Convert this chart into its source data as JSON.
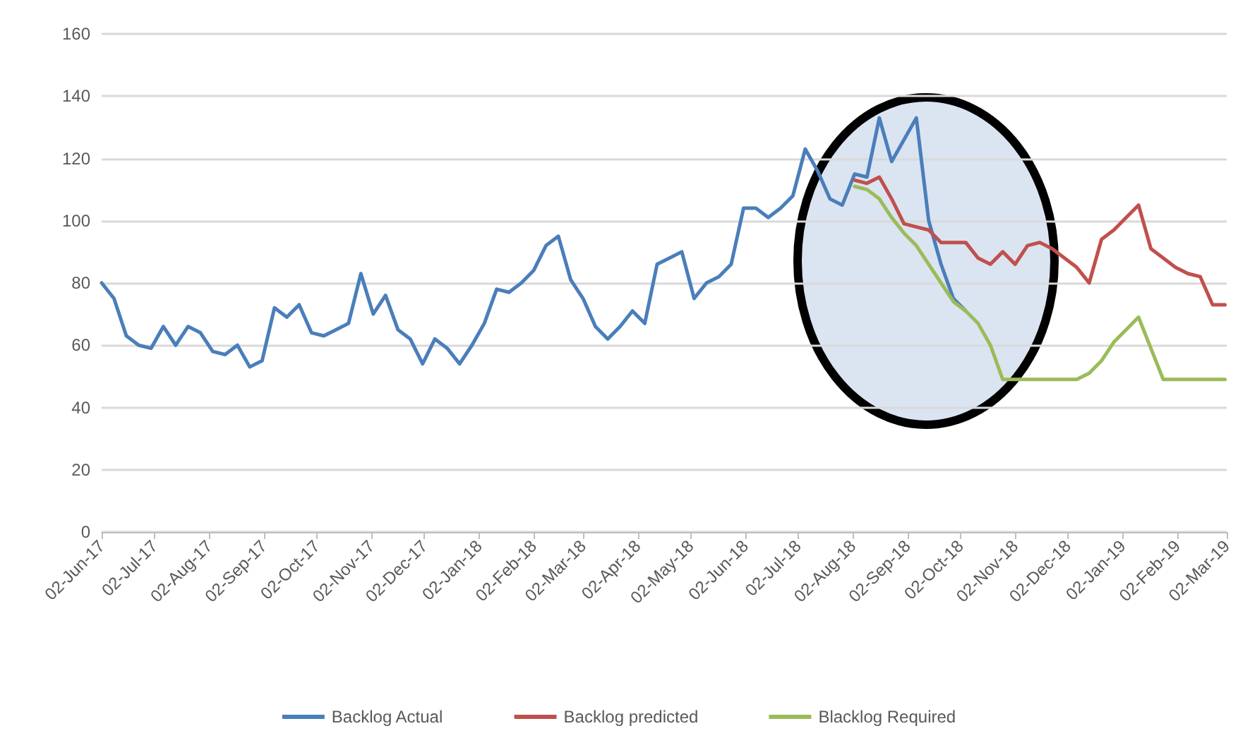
{
  "chart_data": {
    "type": "line",
    "x": [
      "2017-06-02",
      "2017-06-09",
      "2017-06-16",
      "2017-06-23",
      "2017-06-30",
      "2017-07-07",
      "2017-07-14",
      "2017-07-21",
      "2017-07-28",
      "2017-08-04",
      "2017-08-11",
      "2017-08-18",
      "2017-08-25",
      "2017-09-01",
      "2017-09-08",
      "2017-09-15",
      "2017-09-22",
      "2017-09-29",
      "2017-10-06",
      "2017-10-13",
      "2017-10-20",
      "2017-10-27",
      "2017-11-03",
      "2017-11-10",
      "2017-11-17",
      "2017-11-24",
      "2017-12-01",
      "2017-12-08",
      "2017-12-15",
      "2017-12-22",
      "2017-12-29",
      "2018-01-05",
      "2018-01-12",
      "2018-01-19",
      "2018-01-26",
      "2018-02-02",
      "2018-02-09",
      "2018-02-16",
      "2018-02-23",
      "2018-03-02",
      "2018-03-09",
      "2018-03-16",
      "2018-03-23",
      "2018-03-30",
      "2018-04-06",
      "2018-04-13",
      "2018-04-20",
      "2018-04-27",
      "2018-05-04",
      "2018-05-11",
      "2018-05-18",
      "2018-05-25",
      "2018-06-01",
      "2018-06-08",
      "2018-06-15",
      "2018-06-22",
      "2018-06-29",
      "2018-07-06",
      "2018-07-13",
      "2018-07-20",
      "2018-07-27",
      "2018-08-03",
      "2018-08-10",
      "2018-08-17",
      "2018-08-24",
      "2018-08-31",
      "2018-09-07",
      "2018-09-14",
      "2018-09-21",
      "2018-09-28",
      "2018-10-05",
      "2018-10-12",
      "2018-10-19",
      "2018-10-26",
      "2018-11-02",
      "2018-11-09",
      "2018-11-16",
      "2018-11-23",
      "2018-11-30",
      "2018-12-07",
      "2018-12-14",
      "2018-12-21",
      "2018-12-28",
      "2019-01-04",
      "2019-01-11",
      "2019-01-18",
      "2019-01-25",
      "2019-02-01",
      "2019-02-08",
      "2019-02-15",
      "2019-02-22",
      "2019-03-01"
    ],
    "series": [
      {
        "name": "Backlog Actual",
        "color": "#4a7ebb",
        "values": [
          80,
          75,
          63,
          60,
          59,
          66,
          60,
          66,
          64,
          58,
          57,
          60,
          53,
          55,
          72,
          69,
          73,
          64,
          63,
          65,
          67,
          83,
          70,
          76,
          65,
          62,
          54,
          62,
          59,
          54,
          60,
          67,
          78,
          77,
          80,
          84,
          92,
          95,
          81,
          75,
          66,
          62,
          66,
          71,
          67,
          86,
          88,
          90,
          75,
          80,
          82,
          86,
          104,
          104,
          101,
          104,
          108,
          123,
          116,
          107,
          105,
          115,
          114,
          133,
          119,
          126,
          133,
          100,
          86,
          75,
          71,
          null,
          null,
          null,
          null,
          null,
          null,
          null,
          null,
          null,
          null,
          null,
          null,
          null,
          null,
          null,
          null,
          null,
          null,
          null,
          null,
          null
        ]
      },
      {
        "name": "Backlog predicted",
        "color": "#c0504d",
        "values": [
          null,
          null,
          null,
          null,
          null,
          null,
          null,
          null,
          null,
          null,
          null,
          null,
          null,
          null,
          null,
          null,
          null,
          null,
          null,
          null,
          null,
          null,
          null,
          null,
          null,
          null,
          null,
          null,
          null,
          null,
          null,
          null,
          null,
          null,
          null,
          null,
          null,
          null,
          null,
          null,
          null,
          null,
          null,
          null,
          null,
          null,
          null,
          null,
          null,
          null,
          null,
          null,
          null,
          null,
          null,
          null,
          null,
          null,
          null,
          null,
          null,
          113,
          112,
          114,
          107,
          99,
          98,
          97,
          93,
          93,
          93,
          88,
          86,
          90,
          86,
          92,
          93,
          91,
          88,
          85,
          80,
          94,
          97,
          101,
          105,
          91,
          88,
          85,
          83,
          82,
          73,
          73
        ]
      },
      {
        "name": "Blacklog Required",
        "color": "#9bbb59",
        "values": [
          null,
          null,
          null,
          null,
          null,
          null,
          null,
          null,
          null,
          null,
          null,
          null,
          null,
          null,
          null,
          null,
          null,
          null,
          null,
          null,
          null,
          null,
          null,
          null,
          null,
          null,
          null,
          null,
          null,
          null,
          null,
          null,
          null,
          null,
          null,
          null,
          null,
          null,
          null,
          null,
          null,
          null,
          null,
          null,
          null,
          null,
          null,
          null,
          null,
          null,
          null,
          null,
          null,
          null,
          null,
          null,
          null,
          null,
          null,
          null,
          null,
          111,
          110,
          107,
          101,
          96,
          92,
          86,
          80,
          74,
          71,
          67,
          60,
          49,
          49,
          49,
          49,
          49,
          49,
          49,
          51,
          55,
          61,
          65,
          69,
          59,
          49,
          49,
          49,
          49,
          49,
          49
        ]
      }
    ],
    "xlim": [
      "2017-06-02",
      "2019-03-02"
    ],
    "xticks": [
      {
        "value": "2017-06-02",
        "label": "02-Jun-17"
      },
      {
        "value": "2017-07-02",
        "label": "02-Jul-17"
      },
      {
        "value": "2017-08-02",
        "label": "02-Aug-17"
      },
      {
        "value": "2017-09-02",
        "label": "02-Sep-17"
      },
      {
        "value": "2017-10-02",
        "label": "02-Oct-17"
      },
      {
        "value": "2017-11-02",
        "label": "02-Nov-17"
      },
      {
        "value": "2017-12-02",
        "label": "02-Dec-17"
      },
      {
        "value": "2018-01-02",
        "label": "02-Jan-18"
      },
      {
        "value": "2018-02-02",
        "label": "02-Feb-18"
      },
      {
        "value": "2018-03-02",
        "label": "02-Mar-18"
      },
      {
        "value": "2018-04-02",
        "label": "02-Apr-18"
      },
      {
        "value": "2018-05-02",
        "label": "02-May-18"
      },
      {
        "value": "2018-06-02",
        "label": "02-Jun-18"
      },
      {
        "value": "2018-07-02",
        "label": "02-Jul-18"
      },
      {
        "value": "2018-08-02",
        "label": "02-Aug-18"
      },
      {
        "value": "2018-09-02",
        "label": "02-Sep-18"
      },
      {
        "value": "2018-10-02",
        "label": "02-Oct-18"
      },
      {
        "value": "2018-11-02",
        "label": "02-Nov-18"
      },
      {
        "value": "2018-12-02",
        "label": "02-Dec-18"
      },
      {
        "value": "2019-01-02",
        "label": "02-Jan-19"
      },
      {
        "value": "2019-02-02",
        "label": "02-Feb-19"
      },
      {
        "value": "2019-03-02",
        "label": "02-Mar-19"
      }
    ],
    "ylim": [
      0,
      160
    ],
    "yticks": [
      0,
      20,
      40,
      60,
      80,
      100,
      120,
      140,
      160
    ],
    "grid": "y",
    "legend": "bottom",
    "marker": "none",
    "line_style": "solid"
  }
}
